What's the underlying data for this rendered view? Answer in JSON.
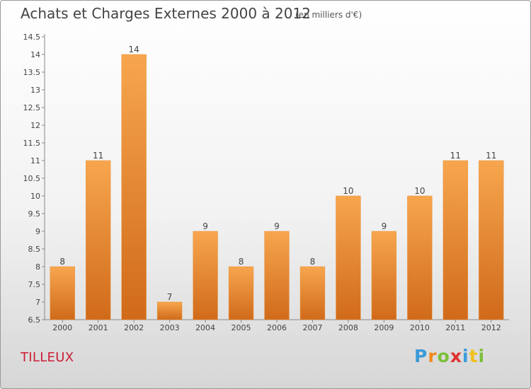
{
  "header": {
    "title": "Achats et Charges Externes 2000 à 2012",
    "subtitle": "(en milliers d'€)"
  },
  "footer": {
    "commune": "TILLEUX",
    "logo_letters": [
      "P",
      "r",
      "o",
      "x",
      "i",
      "t",
      "i"
    ],
    "logo_colors": [
      "#3a9ad9",
      "#f08a1d",
      "#7bbf3a",
      "#e03030",
      "#3a9ad9",
      "#f0c01d",
      "#7bbf3a"
    ]
  },
  "chart_data": {
    "type": "bar",
    "title": "Achats et Charges Externes 2000 à 2012",
    "subtitle": "(en milliers d'€)",
    "xlabel": "",
    "ylabel": "",
    "categories": [
      "2000",
      "2001",
      "2002",
      "2003",
      "2004",
      "2005",
      "2006",
      "2007",
      "2008",
      "2009",
      "2010",
      "2011",
      "2012"
    ],
    "values": [
      8,
      11,
      14,
      7,
      9,
      8,
      9,
      8,
      10,
      9,
      10,
      11,
      11
    ],
    "ylim": [
      6.5,
      14.5
    ],
    "yticks": [
      "6.5",
      "7",
      "7.5",
      "8",
      "8.5",
      "9",
      "9.5",
      "10",
      "10.5",
      "11",
      "11.5",
      "12",
      "12.5",
      "13",
      "13.5",
      "14",
      "14.5"
    ],
    "grid": false,
    "bar_color_light": "#f7a64e",
    "bar_color_dark": "#d06a1a",
    "legend": "none"
  }
}
